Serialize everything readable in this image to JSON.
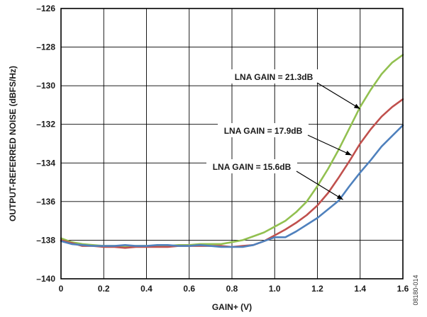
{
  "chart_data": {
    "type": "line",
    "title": "",
    "xlabel": "GAIN+ (V)",
    "ylabel": "OUTPUT-REFERRED NOISE (dBFS/Hz)",
    "xlim": [
      0,
      1.6
    ],
    "ylim": [
      -140,
      -126
    ],
    "grid": true,
    "x_ticks": [
      0,
      0.2,
      0.4,
      0.6,
      0.8,
      1.0,
      1.2,
      1.4,
      1.6
    ],
    "x_tick_labels": [
      "0",
      "0.2",
      "0.4",
      "0.6",
      "0.8",
      "1.0",
      "1.2",
      "1.4",
      "1.6"
    ],
    "y_ticks": [
      -140,
      -138,
      -136,
      -134,
      -132,
      -130,
      -128,
      -126
    ],
    "y_tick_labels": [
      "–140",
      "–138",
      "–136",
      "–134",
      "–132",
      "–130",
      "–128",
      "–126"
    ],
    "figure_id": "08180-014",
    "series": [
      {
        "color": "#92c050",
        "x": [
          0,
          0.05,
          0.1,
          0.15,
          0.2,
          0.25,
          0.3,
          0.35,
          0.4,
          0.45,
          0.5,
          0.55,
          0.6,
          0.65,
          0.7,
          0.75,
          0.8,
          0.85,
          0.9,
          0.95,
          1.0,
          1.05,
          1.1,
          1.15,
          1.2,
          1.25,
          1.3,
          1.35,
          1.4,
          1.45,
          1.5,
          1.55,
          1.6
        ],
        "y": [
          -137.9,
          -138.1,
          -138.2,
          -138.25,
          -138.3,
          -138.3,
          -138.35,
          -138.3,
          -138.3,
          -138.3,
          -138.3,
          -138.25,
          -138.25,
          -138.2,
          -138.2,
          -138.2,
          -138.1,
          -138.0,
          -137.8,
          -137.6,
          -137.3,
          -137.0,
          -136.55,
          -136.0,
          -135.2,
          -134.3,
          -133.3,
          -132.2,
          -131.1,
          -130.2,
          -129.4,
          -128.8,
          -128.4
        ]
      },
      {
        "color": "#c0504d",
        "x": [
          0,
          0.05,
          0.1,
          0.15,
          0.2,
          0.25,
          0.3,
          0.35,
          0.4,
          0.45,
          0.5,
          0.55,
          0.6,
          0.65,
          0.7,
          0.75,
          0.8,
          0.85,
          0.9,
          0.95,
          1.0,
          1.05,
          1.1,
          1.15,
          1.2,
          1.25,
          1.3,
          1.35,
          1.4,
          1.45,
          1.5,
          1.55,
          1.6
        ],
        "y": [
          -138.0,
          -138.15,
          -138.3,
          -138.3,
          -138.35,
          -138.35,
          -138.4,
          -138.35,
          -138.35,
          -138.35,
          -138.35,
          -138.3,
          -138.3,
          -138.3,
          -138.3,
          -138.3,
          -138.35,
          -138.3,
          -138.25,
          -138.05,
          -137.75,
          -137.45,
          -137.1,
          -136.7,
          -136.2,
          -135.55,
          -134.75,
          -133.9,
          -133.0,
          -132.25,
          -131.6,
          -131.1,
          -130.7
        ]
      },
      {
        "color": "#4f81bd",
        "x": [
          0,
          0.05,
          0.1,
          0.15,
          0.2,
          0.25,
          0.3,
          0.35,
          0.4,
          0.45,
          0.5,
          0.55,
          0.6,
          0.65,
          0.7,
          0.75,
          0.8,
          0.85,
          0.9,
          0.95,
          1.0,
          1.05,
          1.1,
          1.15,
          1.2,
          1.25,
          1.3,
          1.35,
          1.4,
          1.45,
          1.5,
          1.55,
          1.6
        ],
        "y": [
          -138.05,
          -138.2,
          -138.25,
          -138.3,
          -138.3,
          -138.3,
          -138.25,
          -138.3,
          -138.3,
          -138.25,
          -138.25,
          -138.3,
          -138.3,
          -138.25,
          -138.3,
          -138.35,
          -138.35,
          -138.35,
          -138.25,
          -138.05,
          -137.85,
          -137.85,
          -137.55,
          -137.2,
          -136.85,
          -136.4,
          -135.95,
          -135.2,
          -134.5,
          -133.85,
          -133.15,
          -132.6,
          -132.05
        ]
      }
    ],
    "annotations": [
      {
        "text": "LNA GAIN = 21.3dB",
        "target_x": 1.4,
        "target_y": -131.2
      },
      {
        "text": "LNA GAIN = 17.9dB",
        "target_x": 1.36,
        "target_y": -133.6
      },
      {
        "text": "LNA GAIN = 15.6dB",
        "target_x": 1.32,
        "target_y": -135.9
      }
    ]
  }
}
